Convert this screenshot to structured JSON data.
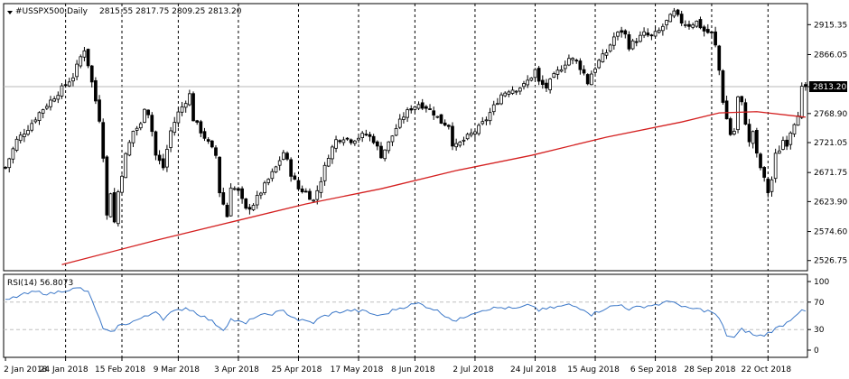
{
  "header": {
    "symbol": "#USSPX500,Daily",
    "ohlc": "2815.55 2817.75 2809.25 2813.20"
  },
  "price_tag": "2813.20",
  "rsi_label": "RSI(14) 56.8073",
  "colors": {
    "candle": "#000000",
    "ma_line": "#d42020",
    "rsi_line": "#3c78c8",
    "grid": "#000000",
    "price_tag_bg": "#000000"
  },
  "chart_data": [
    {
      "type": "candlestick",
      "title": "#USSPX500,Daily",
      "ylim": [
        2510,
        2950
      ],
      "y_ticks": [
        "2915.35",
        "2866.05",
        "2813.20",
        "2768.90",
        "2721.05",
        "2671.75",
        "2623.90",
        "2574.60",
        "2526.75"
      ],
      "x_ticks": [
        "2 Jan 2018",
        "24 Jan 2018",
        "15 Feb 2018",
        "9 Mar 2018",
        "3 Apr 2018",
        "25 Apr 2018",
        "17 May 2018",
        "8 Jun 2018",
        "2 Jul 2018",
        "24 Jul 2018",
        "15 Aug 2018",
        "6 Sep 2018",
        "28 Sep 2018",
        "22 Oct 2018"
      ],
      "close_path": [
        [
          0,
          2680
        ],
        [
          3,
          2725
        ],
        [
          6,
          2745
        ],
        [
          9,
          2770
        ],
        [
          12,
          2790
        ],
        [
          15,
          2810
        ],
        [
          18,
          2830
        ],
        [
          20,
          2862
        ],
        [
          21,
          2875
        ],
        [
          22,
          2850
        ],
        [
          23,
          2820
        ],
        [
          24,
          2790
        ],
        [
          25,
          2760
        ],
        [
          26,
          2700
        ],
        [
          27,
          2600
        ],
        [
          28,
          2640
        ],
        [
          29,
          2590
        ],
        [
          30,
          2640
        ],
        [
          32,
          2700
        ],
        [
          34,
          2740
        ],
        [
          36,
          2750
        ],
        [
          37,
          2780
        ],
        [
          38,
          2770
        ],
        [
          39,
          2740
        ],
        [
          40,
          2700
        ],
        [
          42,
          2680
        ],
        [
          44,
          2740
        ],
        [
          46,
          2770
        ],
        [
          48,
          2790
        ],
        [
          49,
          2800
        ],
        [
          50,
          2760
        ],
        [
          52,
          2740
        ],
        [
          54,
          2720
        ],
        [
          56,
          2700
        ],
        [
          57,
          2640
        ],
        [
          58,
          2620
        ],
        [
          59,
          2600
        ],
        [
          60,
          2650
        ],
        [
          62,
          2640
        ],
        [
          64,
          2610
        ],
        [
          66,
          2620
        ],
        [
          68,
          2640
        ],
        [
          70,
          2660
        ],
        [
          72,
          2680
        ],
        [
          74,
          2705
        ],
        [
          75,
          2690
        ],
        [
          76,
          2670
        ],
        [
          78,
          2645
        ],
        [
          80,
          2640
        ],
        [
          82,
          2625
        ],
        [
          84,
          2660
        ],
        [
          86,
          2700
        ],
        [
          88,
          2725
        ],
        [
          90,
          2730
        ],
        [
          92,
          2725
        ],
        [
          94,
          2730
        ],
        [
          96,
          2735
        ],
        [
          98,
          2725
        ],
        [
          100,
          2700
        ],
        [
          102,
          2720
        ],
        [
          104,
          2745
        ],
        [
          106,
          2765
        ],
        [
          108,
          2778
        ],
        [
          110,
          2785
        ],
        [
          112,
          2780
        ],
        [
          114,
          2770
        ],
        [
          116,
          2755
        ],
        [
          118,
          2750
        ],
        [
          119,
          2720
        ],
        [
          120,
          2715
        ],
        [
          122,
          2725
        ],
        [
          124,
          2735
        ],
        [
          126,
          2745
        ],
        [
          128,
          2760
        ],
        [
          130,
          2780
        ],
        [
          132,
          2800
        ],
        [
          134,
          2808
        ],
        [
          136,
          2810
        ],
        [
          138,
          2815
        ],
        [
          140,
          2830
        ],
        [
          141,
          2840
        ],
        [
          142,
          2820
        ],
        [
          144,
          2812
        ],
        [
          146,
          2830
        ],
        [
          148,
          2845
        ],
        [
          150,
          2860
        ],
        [
          152,
          2855
        ],
        [
          154,
          2835
        ],
        [
          155,
          2820
        ],
        [
          156,
          2835
        ],
        [
          158,
          2855
        ],
        [
          160,
          2870
        ],
        [
          162,
          2895
        ],
        [
          164,
          2905
        ],
        [
          165,
          2898
        ],
        [
          166,
          2880
        ],
        [
          168,
          2890
        ],
        [
          170,
          2900
        ],
        [
          172,
          2895
        ],
        [
          174,
          2905
        ],
        [
          176,
          2920
        ],
        [
          178,
          2935
        ],
        [
          180,
          2920
        ],
        [
          182,
          2915
        ],
        [
          184,
          2920
        ],
        [
          186,
          2905
        ],
        [
          188,
          2900
        ],
        [
          189,
          2880
        ],
        [
          190,
          2840
        ],
        [
          191,
          2790
        ],
        [
          192,
          2760
        ],
        [
          193,
          2735
        ],
        [
          194,
          2740
        ],
        [
          195,
          2795
        ],
        [
          196,
          2785
        ],
        [
          197,
          2755
        ],
        [
          198,
          2720
        ],
        [
          199,
          2740
        ],
        [
          200,
          2700
        ],
        [
          201,
          2680
        ],
        [
          202,
          2660
        ],
        [
          203,
          2640
        ],
        [
          204,
          2660
        ],
        [
          205,
          2700
        ],
        [
          206,
          2710
        ],
        [
          207,
          2725
        ],
        [
          208,
          2720
        ],
        [
          209,
          2740
        ],
        [
          210,
          2755
        ],
        [
          211,
          2770
        ],
        [
          212,
          2810
        ],
        [
          213,
          2813.2
        ]
      ],
      "ma_line": {
        "name": "",
        "points": [
          [
            15,
            2520
          ],
          [
            40,
            2560
          ],
          [
            60,
            2590
          ],
          [
            80,
            2620
          ],
          [
            100,
            2645
          ],
          [
            120,
            2675
          ],
          [
            140,
            2700
          ],
          [
            160,
            2730
          ],
          [
            180,
            2755
          ],
          [
            190,
            2770
          ],
          [
            200,
            2772
          ],
          [
            210,
            2765
          ],
          [
            213,
            2763
          ]
        ]
      }
    },
    {
      "type": "line",
      "title": "RSI(14) 56.8073",
      "ylim": [
        0,
        100
      ],
      "y_ticks": [
        "100",
        "70",
        "30",
        "0"
      ],
      "levels": [
        70,
        30
      ],
      "series": [
        {
          "name": "RSI(14)",
          "points": [
            [
              0,
              72
            ],
            [
              4,
              80
            ],
            [
              8,
              85
            ],
            [
              12,
              82
            ],
            [
              16,
              88
            ],
            [
              20,
              90
            ],
            [
              22,
              84
            ],
            [
              24,
              60
            ],
            [
              26,
              30
            ],
            [
              28,
              25
            ],
            [
              30,
              35
            ],
            [
              34,
              42
            ],
            [
              38,
              50
            ],
            [
              40,
              58
            ],
            [
              42,
              46
            ],
            [
              44,
              54
            ],
            [
              48,
              62
            ],
            [
              50,
              57
            ],
            [
              54,
              45
            ],
            [
              56,
              38
            ],
            [
              58,
              30
            ],
            [
              60,
              45
            ],
            [
              64,
              38
            ],
            [
              66,
              48
            ],
            [
              70,
              52
            ],
            [
              74,
              57
            ],
            [
              76,
              50
            ],
            [
              78,
              44
            ],
            [
              82,
              40
            ],
            [
              84,
              48
            ],
            [
              88,
              55
            ],
            [
              92,
              58
            ],
            [
              96,
              56
            ],
            [
              98,
              52
            ],
            [
              100,
              50
            ],
            [
              104,
              60
            ],
            [
              108,
              66
            ],
            [
              110,
              68
            ],
            [
              114,
              60
            ],
            [
              118,
              48
            ],
            [
              120,
              42
            ],
            [
              124,
              54
            ],
            [
              128,
              60
            ],
            [
              132,
              62
            ],
            [
              136,
              60
            ],
            [
              140,
              66
            ],
            [
              142,
              58
            ],
            [
              146,
              62
            ],
            [
              150,
              66
            ],
            [
              154,
              60
            ],
            [
              156,
              52
            ],
            [
              160,
              62
            ],
            [
              164,
              66
            ],
            [
              166,
              60
            ],
            [
              170,
              64
            ],
            [
              174,
              67
            ],
            [
              178,
              72
            ],
            [
              180,
              62
            ],
            [
              184,
              60
            ],
            [
              188,
              56
            ],
            [
              190,
              46
            ],
            [
              192,
              22
            ],
            [
              194,
              18
            ],
            [
              196,
              30
            ],
            [
              198,
              26
            ],
            [
              200,
              20
            ],
            [
              202,
              22
            ],
            [
              204,
              28
            ],
            [
              206,
              34
            ],
            [
              208,
              40
            ],
            [
              210,
              50
            ],
            [
              212,
              60
            ],
            [
              213,
              56.8
            ]
          ]
        }
      ]
    }
  ]
}
